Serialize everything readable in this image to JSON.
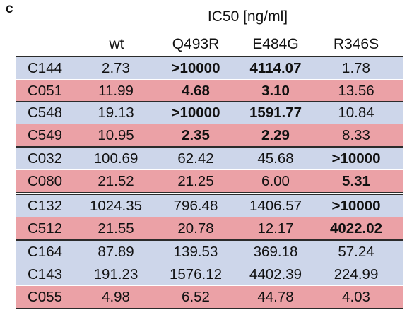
{
  "panel_label": "c",
  "header": {
    "title": "IC50 [ng/ml]",
    "columns": [
      "wt",
      "Q493R",
      "E484G",
      "R346S"
    ]
  },
  "chart_data": {
    "type": "table",
    "title": "IC50 [ng/ml]",
    "columns": [
      "wt",
      "Q493R",
      "E484G",
      "R346S"
    ],
    "groups": [
      {
        "rows": [
          {
            "name": "C144",
            "color": "#cdd6ea",
            "values": [
              "2.73",
              ">10000",
              "4114.07",
              "1.78"
            ],
            "bold": [
              false,
              true,
              true,
              false
            ]
          },
          {
            "name": "C051",
            "color": "#eba1a6",
            "values": [
              "11.99",
              "4.68",
              "3.10",
              "13.56"
            ],
            "bold": [
              false,
              true,
              true,
              false
            ]
          }
        ]
      },
      {
        "rows": [
          {
            "name": "C548",
            "color": "#cdd6ea",
            "values": [
              "19.13",
              ">10000",
              "1591.77",
              "10.84"
            ],
            "bold": [
              false,
              true,
              true,
              false
            ]
          },
          {
            "name": "C549",
            "color": "#eba1a6",
            "values": [
              "10.95",
              "2.35",
              "2.29",
              "8.33"
            ],
            "bold": [
              false,
              true,
              true,
              false
            ]
          }
        ]
      },
      {
        "rows": [
          {
            "name": "C032",
            "color": "#cdd6ea",
            "values": [
              "100.69",
              "62.42",
              "45.68",
              ">10000"
            ],
            "bold": [
              false,
              false,
              false,
              true
            ]
          },
          {
            "name": "C080",
            "color": "#eba1a6",
            "values": [
              "21.52",
              "21.25",
              "6.00",
              "5.31"
            ],
            "bold": [
              false,
              false,
              false,
              true
            ]
          }
        ]
      },
      {
        "rows": [
          {
            "name": "C132",
            "color": "#cdd6ea",
            "values": [
              "1024.35",
              "796.48",
              "1406.57",
              ">10000"
            ],
            "bold": [
              false,
              false,
              false,
              true
            ]
          },
          {
            "name": "C512",
            "color": "#eba1a6",
            "values": [
              "21.55",
              "20.78",
              "12.17",
              "4022.02"
            ],
            "bold": [
              false,
              false,
              false,
              true
            ]
          }
        ]
      },
      {
        "rows": [
          {
            "name": "C164",
            "color": "#cdd6ea",
            "values": [
              "87.89",
              "139.53",
              "369.18",
              "57.24"
            ],
            "bold": [
              false,
              false,
              false,
              false
            ]
          },
          {
            "name": "C143",
            "color": "#cdd6ea",
            "values": [
              "191.23",
              "1576.12",
              "4402.39",
              "224.99"
            ],
            "bold": [
              false,
              false,
              false,
              false
            ]
          },
          {
            "name": "C055",
            "color": "#eba1a6",
            "values": [
              "4.98",
              "6.52",
              "44.78",
              "4.03"
            ],
            "bold": [
              false,
              false,
              false,
              false
            ]
          }
        ]
      }
    ]
  }
}
